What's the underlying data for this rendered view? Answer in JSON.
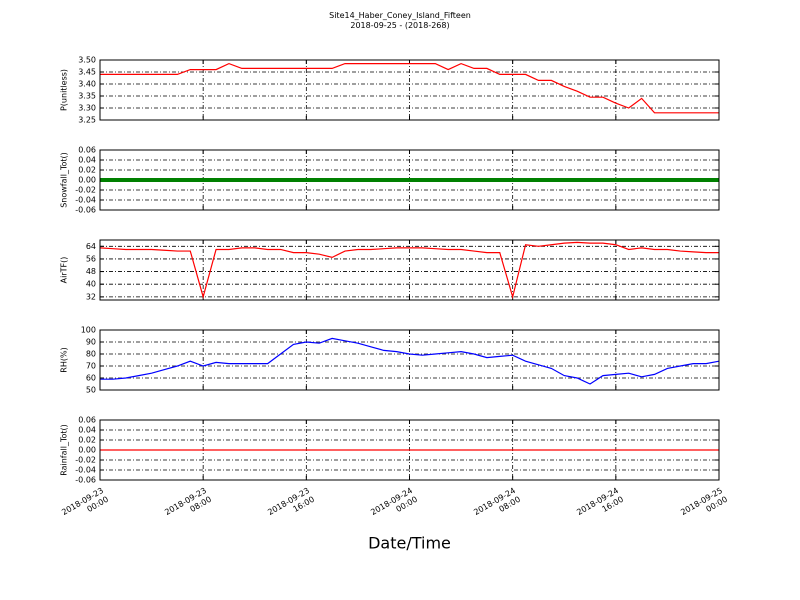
{
  "title": "Site14_Haber_Coney_Island_Fifteen",
  "subtitle": "2018-09-25 - (2018-268)",
  "chart_data": [
    {
      "type": "line",
      "ylabel": "P(unitless)",
      "x": [
        "2018-09-23 00:00",
        "2018-09-23 01:00",
        "2018-09-23 02:00",
        "2018-09-23 03:00",
        "2018-09-23 04:00",
        "2018-09-23 05:00",
        "2018-09-23 06:00",
        "2018-09-23 07:00",
        "2018-09-23 08:00",
        "2018-09-23 09:00",
        "2018-09-23 10:00",
        "2018-09-23 11:00",
        "2018-09-23 12:00",
        "2018-09-23 13:00",
        "2018-09-23 14:00",
        "2018-09-23 15:00",
        "2018-09-23 16:00",
        "2018-09-23 17:00",
        "2018-09-23 18:00",
        "2018-09-23 19:00",
        "2018-09-23 20:00",
        "2018-09-23 21:00",
        "2018-09-23 22:00",
        "2018-09-23 23:00",
        "2018-09-24 00:00",
        "2018-09-24 01:00",
        "2018-09-24 02:00",
        "2018-09-24 03:00",
        "2018-09-24 04:00",
        "2018-09-24 05:00",
        "2018-09-24 06:00",
        "2018-09-24 07:00",
        "2018-09-24 08:00",
        "2018-09-24 09:00",
        "2018-09-24 10:00",
        "2018-09-24 11:00",
        "2018-09-24 12:00",
        "2018-09-24 13:00",
        "2018-09-24 14:00",
        "2018-09-24 15:00",
        "2018-09-24 16:00",
        "2018-09-24 17:00",
        "2018-09-24 18:00",
        "2018-09-24 19:00",
        "2018-09-24 20:00",
        "2018-09-24 21:00",
        "2018-09-24 22:00",
        "2018-09-24 23:00",
        "2018-09-25 00:00"
      ],
      "xlim": [
        "2018-09-23 00:00",
        "2018-09-25 00:00"
      ],
      "series": [
        {
          "color": "#ff0000",
          "values": [
            3.44,
            3.44,
            3.44,
            3.44,
            3.44,
            3.44,
            3.44,
            3.46,
            3.46,
            3.46,
            3.485,
            3.465,
            3.465,
            3.465,
            3.465,
            3.465,
            3.465,
            3.465,
            3.465,
            3.485,
            3.485,
            3.485,
            3.485,
            3.485,
            3.485,
            3.485,
            3.485,
            3.46,
            3.485,
            3.465,
            3.465,
            3.44,
            3.44,
            3.44,
            3.415,
            3.415,
            3.39,
            3.37,
            3.345,
            3.345,
            3.32,
            3.3,
            3.34,
            3.28,
            3.28,
            3.28,
            3.28,
            3.28,
            3.28
          ]
        }
      ],
      "ylim": [
        3.25,
        3.5
      ],
      "yticks": [
        3.25,
        {
          "value": 3.3,
          "label": "3.30"
        },
        3.35,
        {
          "value": 3.4,
          "label": "3.40"
        },
        3.45,
        {
          "value": 3.5,
          "label": "3.50"
        }
      ],
      "grid": true
    },
    {
      "type": "line",
      "ylabel": "Snowfall_Tot()",
      "x": [
        "2018-09-23 00:00",
        "2018-09-23 01:00",
        "2018-09-23 02:00",
        "2018-09-23 03:00",
        "2018-09-23 04:00",
        "2018-09-23 05:00",
        "2018-09-23 06:00",
        "2018-09-23 07:00",
        "2018-09-23 08:00",
        "2018-09-23 09:00",
        "2018-09-23 10:00",
        "2018-09-23 11:00",
        "2018-09-23 12:00",
        "2018-09-23 13:00",
        "2018-09-23 14:00",
        "2018-09-23 15:00",
        "2018-09-23 16:00",
        "2018-09-23 17:00",
        "2018-09-23 18:00",
        "2018-09-23 19:00",
        "2018-09-23 20:00",
        "2018-09-23 21:00",
        "2018-09-23 22:00",
        "2018-09-23 23:00",
        "2018-09-24 00:00",
        "2018-09-24 01:00",
        "2018-09-24 02:00",
        "2018-09-24 03:00",
        "2018-09-24 04:00",
        "2018-09-24 05:00",
        "2018-09-24 06:00",
        "2018-09-24 07:00",
        "2018-09-24 08:00",
        "2018-09-24 09:00",
        "2018-09-24 10:00",
        "2018-09-24 11:00",
        "2018-09-24 12:00",
        "2018-09-24 13:00",
        "2018-09-24 14:00",
        "2018-09-24 15:00",
        "2018-09-24 16:00",
        "2018-09-24 17:00",
        "2018-09-24 18:00",
        "2018-09-24 19:00",
        "2018-09-24 20:00",
        "2018-09-24 21:00",
        "2018-09-24 22:00",
        "2018-09-24 23:00",
        "2018-09-25 00:00"
      ],
      "xlim": [
        "2018-09-23 00:00",
        "2018-09-25 00:00"
      ],
      "series": [
        {
          "color": "#008000",
          "values": [
            0,
            0,
            0,
            0,
            0,
            0,
            0,
            0,
            0,
            0,
            0,
            0,
            0,
            0,
            0,
            0,
            0,
            0,
            0,
            0,
            0,
            0,
            0,
            0,
            0,
            0,
            0,
            0,
            0,
            0,
            0,
            0,
            0,
            0,
            0,
            0,
            0,
            0,
            0,
            0,
            0,
            0,
            0,
            0,
            0,
            0,
            0,
            0,
            0
          ]
        }
      ],
      "ylim": [
        -0.06,
        0.06
      ],
      "yticks": [
        -0.06,
        -0.04,
        -0.02,
        {
          "value": 0,
          "label": "0.00"
        },
        0.02,
        0.04,
        0.06
      ],
      "grid": true
    },
    {
      "type": "line",
      "ylabel": "AirTF()",
      "x": [
        "2018-09-23 00:00",
        "2018-09-23 01:00",
        "2018-09-23 02:00",
        "2018-09-23 03:00",
        "2018-09-23 04:00",
        "2018-09-23 05:00",
        "2018-09-23 06:00",
        "2018-09-23 07:00",
        "2018-09-23 08:00",
        "2018-09-23 09:00",
        "2018-09-23 10:00",
        "2018-09-23 11:00",
        "2018-09-23 12:00",
        "2018-09-23 13:00",
        "2018-09-23 14:00",
        "2018-09-23 15:00",
        "2018-09-23 16:00",
        "2018-09-23 17:00",
        "2018-09-23 18:00",
        "2018-09-23 19:00",
        "2018-09-23 20:00",
        "2018-09-23 21:00",
        "2018-09-23 22:00",
        "2018-09-23 23:00",
        "2018-09-24 00:00",
        "2018-09-24 01:00",
        "2018-09-24 02:00",
        "2018-09-24 03:00",
        "2018-09-24 04:00",
        "2018-09-24 05:00",
        "2018-09-24 06:00",
        "2018-09-24 07:00",
        "2018-09-24 08:00",
        "2018-09-24 09:00",
        "2018-09-24 10:00",
        "2018-09-24 11:00",
        "2018-09-24 12:00",
        "2018-09-24 13:00",
        "2018-09-24 14:00",
        "2018-09-24 15:00",
        "2018-09-24 16:00",
        "2018-09-24 17:00",
        "2018-09-24 18:00",
        "2018-09-24 19:00",
        "2018-09-24 20:00",
        "2018-09-24 21:00",
        "2018-09-24 22:00",
        "2018-09-24 23:00",
        "2018-09-25 00:00"
      ],
      "xlim": [
        "2018-09-23 00:00",
        "2018-09-25 00:00"
      ],
      "series": [
        {
          "color": "#ff0000",
          "values": [
            63,
            62.5,
            62,
            62,
            62,
            61.5,
            61,
            61,
            32,
            62,
            62,
            63,
            63,
            62,
            62,
            60,
            60,
            59,
            57,
            61,
            62,
            62,
            62.5,
            63,
            63,
            63,
            62.5,
            62,
            62,
            61,
            60,
            60,
            32,
            65,
            64,
            65,
            66,
            66.5,
            66,
            66,
            65,
            62,
            63,
            62,
            62,
            61,
            60.5,
            60,
            60
          ]
        }
      ],
      "ylim": [
        30,
        68
      ],
      "yticks": [
        32,
        40,
        48,
        56,
        64
      ],
      "grid": true
    },
    {
      "type": "line",
      "ylabel": "RH(%)",
      "x": [
        "2018-09-23 00:00",
        "2018-09-23 01:00",
        "2018-09-23 02:00",
        "2018-09-23 03:00",
        "2018-09-23 04:00",
        "2018-09-23 05:00",
        "2018-09-23 06:00",
        "2018-09-23 07:00",
        "2018-09-23 08:00",
        "2018-09-23 09:00",
        "2018-09-23 10:00",
        "2018-09-23 11:00",
        "2018-09-23 12:00",
        "2018-09-23 13:00",
        "2018-09-23 14:00",
        "2018-09-23 15:00",
        "2018-09-23 16:00",
        "2018-09-23 17:00",
        "2018-09-23 18:00",
        "2018-09-23 19:00",
        "2018-09-23 20:00",
        "2018-09-23 21:00",
        "2018-09-23 22:00",
        "2018-09-23 23:00",
        "2018-09-24 00:00",
        "2018-09-24 01:00",
        "2018-09-24 02:00",
        "2018-09-24 03:00",
        "2018-09-24 04:00",
        "2018-09-24 05:00",
        "2018-09-24 06:00",
        "2018-09-24 07:00",
        "2018-09-24 08:00",
        "2018-09-24 09:00",
        "2018-09-24 10:00",
        "2018-09-24 11:00",
        "2018-09-24 12:00",
        "2018-09-24 13:00",
        "2018-09-24 14:00",
        "2018-09-24 15:00",
        "2018-09-24 16:00",
        "2018-09-24 17:00",
        "2018-09-24 18:00",
        "2018-09-24 19:00",
        "2018-09-24 20:00",
        "2018-09-24 21:00",
        "2018-09-24 22:00",
        "2018-09-24 23:00",
        "2018-09-25 00:00"
      ],
      "xlim": [
        "2018-09-23 00:00",
        "2018-09-25 00:00"
      ],
      "series": [
        {
          "color": "#0000ff",
          "values": [
            59,
            59,
            60,
            62,
            64,
            67,
            70,
            74,
            70,
            73,
            72,
            72,
            72,
            72,
            80,
            88,
            90,
            89,
            93,
            91,
            89,
            86,
            83,
            82,
            80,
            79,
            80,
            81,
            82,
            80,
            77,
            78,
            79,
            74,
            71,
            68,
            62,
            60,
            55,
            62,
            63,
            64,
            61,
            63,
            68,
            70,
            72,
            72,
            74
          ]
        }
      ],
      "ylim": [
        50,
        100
      ],
      "yticks": [
        50,
        60,
        70,
        80,
        90,
        100
      ],
      "grid": true
    },
    {
      "type": "line",
      "ylabel": "Rainfall_Tot()",
      "xlabel": "Date/Time",
      "x": [
        "2018-09-23 00:00",
        "2018-09-23 01:00",
        "2018-09-23 02:00",
        "2018-09-23 03:00",
        "2018-09-23 04:00",
        "2018-09-23 05:00",
        "2018-09-23 06:00",
        "2018-09-23 07:00",
        "2018-09-23 08:00",
        "2018-09-23 09:00",
        "2018-09-23 10:00",
        "2018-09-23 11:00",
        "2018-09-23 12:00",
        "2018-09-23 13:00",
        "2018-09-23 14:00",
        "2018-09-23 15:00",
        "2018-09-23 16:00",
        "2018-09-23 17:00",
        "2018-09-23 18:00",
        "2018-09-23 19:00",
        "2018-09-23 20:00",
        "2018-09-23 21:00",
        "2018-09-23 22:00",
        "2018-09-23 23:00",
        "2018-09-24 00:00",
        "2018-09-24 01:00",
        "2018-09-24 02:00",
        "2018-09-24 03:00",
        "2018-09-24 04:00",
        "2018-09-24 05:00",
        "2018-09-24 06:00",
        "2018-09-24 07:00",
        "2018-09-24 08:00",
        "2018-09-24 09:00",
        "2018-09-24 10:00",
        "2018-09-24 11:00",
        "2018-09-24 12:00",
        "2018-09-24 13:00",
        "2018-09-24 14:00",
        "2018-09-24 15:00",
        "2018-09-24 16:00",
        "2018-09-24 17:00",
        "2018-09-24 18:00",
        "2018-09-24 19:00",
        "2018-09-24 20:00",
        "2018-09-24 21:00",
        "2018-09-24 22:00",
        "2018-09-24 23:00",
        "2018-09-25 00:00"
      ],
      "xlim": [
        "2018-09-23 00:00",
        "2018-09-25 00:00"
      ],
      "xticks": [
        {
          "value": "2018-09-23 00:00",
          "label": "2018-09-23\n00:00"
        },
        {
          "value": "2018-09-23 08:00",
          "label": "2018-09-23\n08:00"
        },
        {
          "value": "2018-09-23 16:00",
          "label": "2018-09-23\n16:00"
        },
        {
          "value": "2018-09-24 00:00",
          "label": "2018-09-24\n00:00"
        },
        {
          "value": "2018-09-24 08:00",
          "label": "2018-09-24\n08:00"
        },
        {
          "value": "2018-09-24 16:00",
          "label": "2018-09-24\n16:00"
        },
        {
          "value": "2018-09-25 00:00",
          "label": "2018-09-25\n00:00"
        }
      ],
      "series": [
        {
          "color": "#ff0000",
          "values": [
            0,
            0,
            0,
            0,
            0,
            0,
            0,
            0,
            0,
            0,
            0,
            0,
            0,
            0,
            0,
            0,
            0,
            0,
            0,
            0,
            0,
            0,
            0,
            0,
            0,
            0,
            0,
            0,
            0,
            0,
            0,
            0,
            0,
            0,
            0,
            0,
            0,
            0,
            0,
            0,
            0,
            0,
            0,
            0,
            0,
            0,
            0,
            0,
            0
          ]
        }
      ],
      "ylim": [
        -0.06,
        0.06
      ],
      "yticks": [
        -0.06,
        -0.04,
        -0.02,
        {
          "value": 0,
          "label": "0.00"
        },
        0.02,
        0.04,
        0.06
      ],
      "grid": true
    }
  ]
}
